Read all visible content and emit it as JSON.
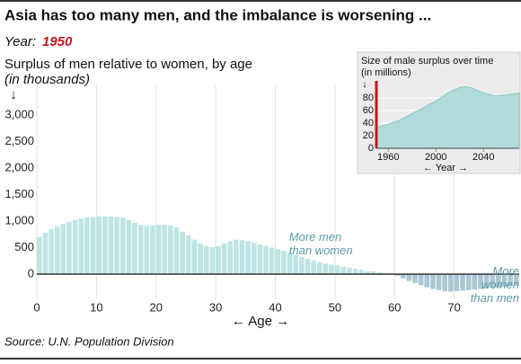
{
  "chart_data": [
    {
      "type": "bar",
      "title": "Asia has too many men, and the imbalance is worsening ...",
      "year_label": "Year:",
      "year": 1950,
      "subtitle": "Surplus of men relative to women, by age",
      "unit_note": "(in thousands)",
      "y_arrow": "↓",
      "x_label": "← Age →",
      "source": "Source: U.N. Population Division",
      "annotations": [
        {
          "lines": [
            "More men",
            "than women"
          ],
          "x": 42,
          "y": 450
        },
        {
          "lines": [
            "More",
            "women",
            "than men"
          ],
          "x": 80,
          "y": -300
        }
      ],
      "x": [
        0,
        1,
        2,
        3,
        4,
        5,
        6,
        7,
        8,
        9,
        10,
        11,
        12,
        13,
        14,
        15,
        16,
        17,
        18,
        19,
        20,
        21,
        22,
        23,
        24,
        25,
        26,
        27,
        28,
        29,
        30,
        31,
        32,
        33,
        34,
        35,
        36,
        37,
        38,
        39,
        40,
        41,
        42,
        43,
        44,
        45,
        46,
        47,
        48,
        49,
        50,
        51,
        52,
        53,
        54,
        55,
        56,
        57,
        58,
        59,
        60,
        61,
        62,
        63,
        64,
        65,
        66,
        67,
        68,
        69,
        70,
        71,
        72,
        73,
        74,
        75,
        76,
        77,
        78,
        79,
        80
      ],
      "values": [
        700,
        780,
        850,
        900,
        950,
        990,
        1020,
        1050,
        1070,
        1080,
        1090,
        1090,
        1090,
        1080,
        1060,
        1020,
        970,
        930,
        910,
        920,
        930,
        930,
        920,
        880,
        800,
        730,
        650,
        580,
        530,
        510,
        530,
        580,
        620,
        650,
        640,
        620,
        590,
        560,
        530,
        500,
        470,
        440,
        400,
        360,
        320,
        290,
        260,
        230,
        200,
        180,
        160,
        140,
        120,
        100,
        80,
        60,
        50,
        30,
        20,
        0,
        -30,
        -80,
        -130,
        -170,
        -210,
        -250,
        -280,
        -300,
        -320,
        -330,
        -320,
        -310,
        -300,
        -290,
        -280,
        -270,
        -260,
        -250,
        -240,
        -230,
        -220
      ],
      "color": "#bfe5e5",
      "negative_color": "#a9c8d3",
      "xlim": [
        0,
        80
      ],
      "xticks": [
        0,
        10,
        20,
        30,
        40,
        50,
        60,
        70
      ],
      "ylim": [
        -500,
        3500
      ],
      "yticks": [
        0,
        500,
        {
          "value": 1000,
          "label": "1,000"
        },
        {
          "value": 1500,
          "label": "1,500"
        },
        {
          "value": 2000,
          "label": "2,000"
        },
        {
          "value": 2500,
          "label": "2,500"
        },
        {
          "value": 3000,
          "label": "3,000"
        }
      ],
      "grid": "x"
    },
    {
      "type": "area",
      "title": "Size of male surplus over time",
      "unit_note": "(in millions)",
      "y_arrow": "↓",
      "x_label": "← Year →",
      "x": [
        1950,
        1960,
        1970,
        1980,
        1990,
        2000,
        2010,
        2020,
        2025,
        2030,
        2040,
        2050,
        2060,
        2070
      ],
      "values": [
        33,
        38,
        45,
        55,
        65,
        75,
        88,
        97,
        98,
        96,
        88,
        83,
        85,
        88
      ],
      "color": "#a9dad8",
      "marker_color": "#c4161c",
      "xlim": [
        1950,
        2070
      ],
      "xticks": [
        1960,
        2000,
        2040
      ],
      "ylim": [
        0,
        100
      ],
      "yticks": [
        0,
        20,
        40,
        60,
        80
      ],
      "grid": "y"
    }
  ]
}
